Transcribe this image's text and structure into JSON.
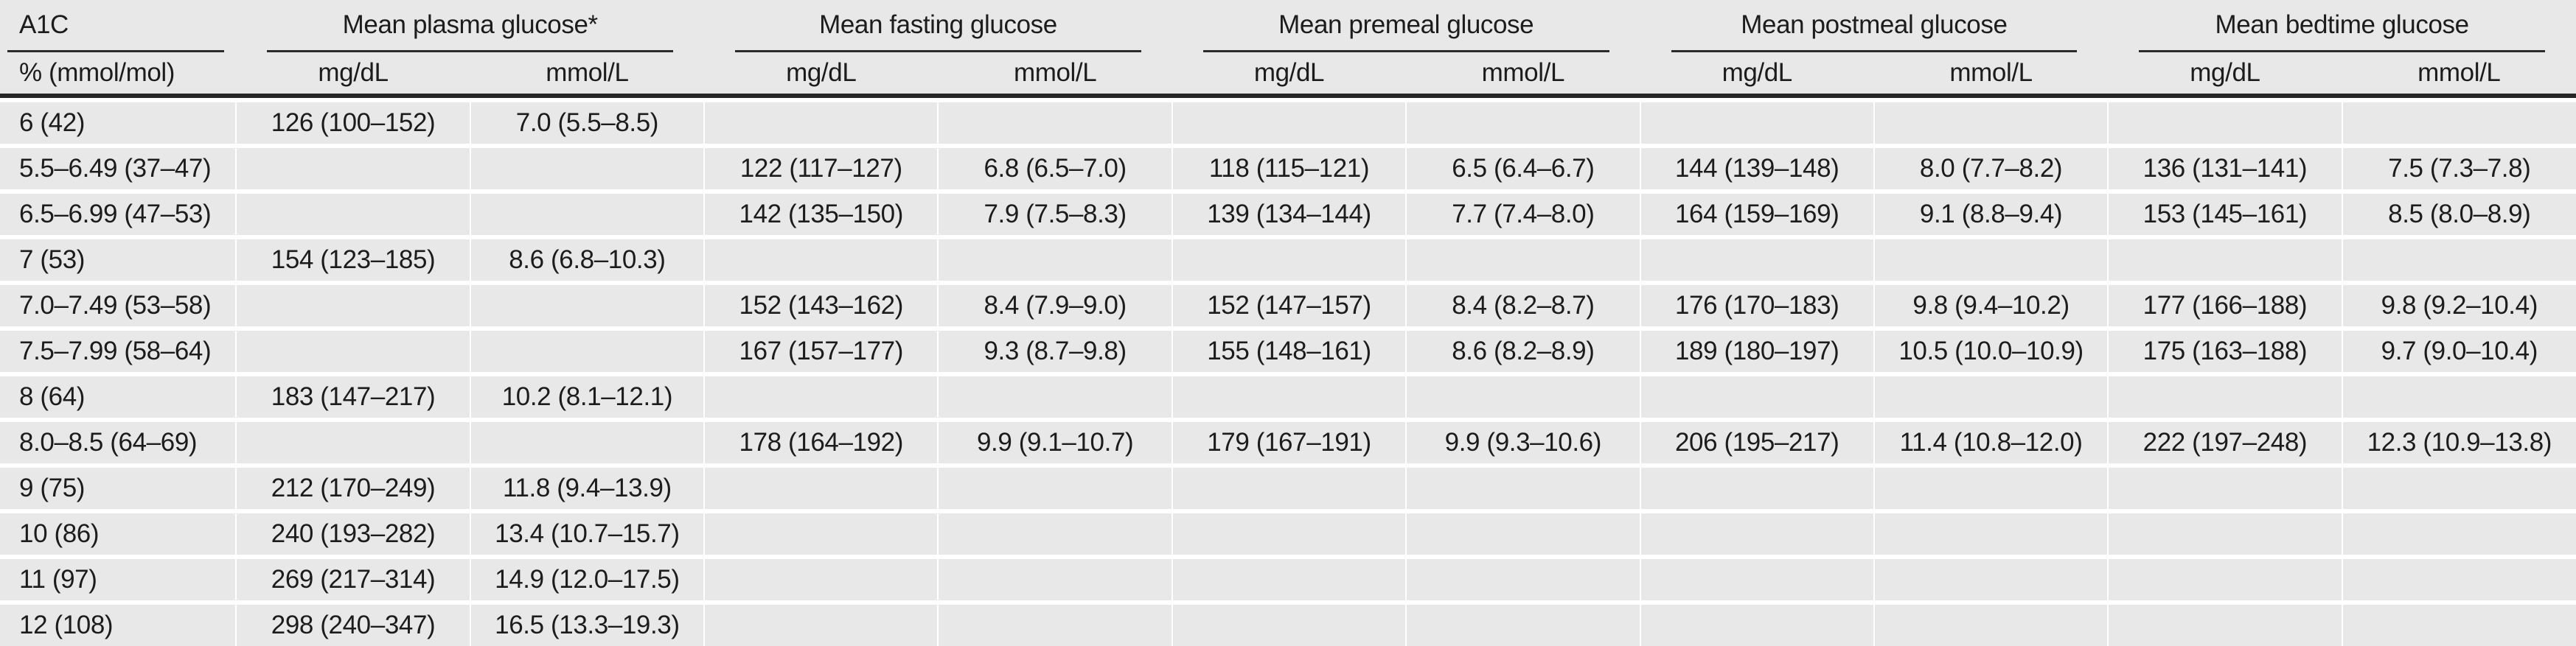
{
  "table": {
    "description": "A1C and mean glucose table",
    "col_groups": [
      {
        "title": "A1C",
        "sub": [
          "% (mmol/mol)"
        ]
      },
      {
        "title": "Mean plasma glucose*",
        "sub": [
          "mg/dL",
          "mmol/L"
        ]
      },
      {
        "title": "Mean fasting glucose",
        "sub": [
          "mg/dL",
          "mmol/L"
        ]
      },
      {
        "title": "Mean premeal glucose",
        "sub": [
          "mg/dL",
          "mmol/L"
        ]
      },
      {
        "title": "Mean postmeal glucose",
        "sub": [
          "mg/dL",
          "mmol/L"
        ]
      },
      {
        "title": "Mean bedtime glucose",
        "sub": [
          "mg/dL",
          "mmol/L"
        ]
      }
    ],
    "rows": [
      [
        "6 (42)",
        "126 (100–152)",
        "7.0 (5.5–8.5)",
        "",
        "",
        "",
        "",
        "",
        "",
        "",
        ""
      ],
      [
        "5.5–6.49 (37–47)",
        "",
        "",
        "122 (117–127)",
        "6.8 (6.5–7.0)",
        "118 (115–121)",
        "6.5 (6.4–6.7)",
        "144 (139–148)",
        "8.0 (7.7–8.2)",
        "136 (131–141)",
        "7.5 (7.3–7.8)"
      ],
      [
        "6.5–6.99 (47–53)",
        "",
        "",
        "142 (135–150)",
        "7.9 (7.5–8.3)",
        "139 (134–144)",
        "7.7 (7.4–8.0)",
        "164 (159–169)",
        "9.1 (8.8–9.4)",
        "153 (145–161)",
        "8.5 (8.0–8.9)"
      ],
      [
        "7 (53)",
        "154 (123–185)",
        "8.6 (6.8–10.3)",
        "",
        "",
        "",
        "",
        "",
        "",
        "",
        ""
      ],
      [
        "7.0–7.49 (53–58)",
        "",
        "",
        "152 (143–162)",
        "8.4 (7.9–9.0)",
        "152 (147–157)",
        "8.4 (8.2–8.7)",
        "176 (170–183)",
        "9.8 (9.4–10.2)",
        "177 (166–188)",
        "9.8 (9.2–10.4)"
      ],
      [
        "7.5–7.99 (58–64)",
        "",
        "",
        "167 (157–177)",
        "9.3 (8.7–9.8)",
        "155 (148–161)",
        "8.6 (8.2–8.9)",
        "189 (180–197)",
        "10.5 (10.0–10.9)",
        "175 (163–188)",
        "9.7 (9.0–10.4)"
      ],
      [
        "8 (64)",
        "183 (147–217)",
        "10.2 (8.1–12.1)",
        "",
        "",
        "",
        "",
        "",
        "",
        "",
        ""
      ],
      [
        "8.0–8.5 (64–69)",
        "",
        "",
        "178 (164–192)",
        "9.9 (9.1–10.7)",
        "179 (167–191)",
        "9.9 (9.3–10.6)",
        "206 (195–217)",
        "11.4 (10.8–12.0)",
        "222 (197–248)",
        "12.3 (10.9–13.8)"
      ],
      [
        "9 (75)",
        "212 (170–249)",
        "11.8 (9.4–13.9)",
        "",
        "",
        "",
        "",
        "",
        "",
        "",
        ""
      ],
      [
        "10 (86)",
        "240 (193–282)",
        "13.4 (10.7–15.7)",
        "",
        "",
        "",
        "",
        "",
        "",
        "",
        ""
      ],
      [
        "11 (97)",
        "269 (217–314)",
        "14.9 (12.0–17.5)",
        "",
        "",
        "",
        "",
        "",
        "",
        "",
        ""
      ],
      [
        "12 (108)",
        "298 (240–347)",
        "16.5 (13.3–19.3)",
        "",
        "",
        "",
        "",
        "",
        "",
        "",
        ""
      ]
    ]
  },
  "colors": {
    "row_background": "#e8e8e8",
    "text": "#1c1c1c",
    "rule": "#262626",
    "separator": "#ffffff"
  }
}
